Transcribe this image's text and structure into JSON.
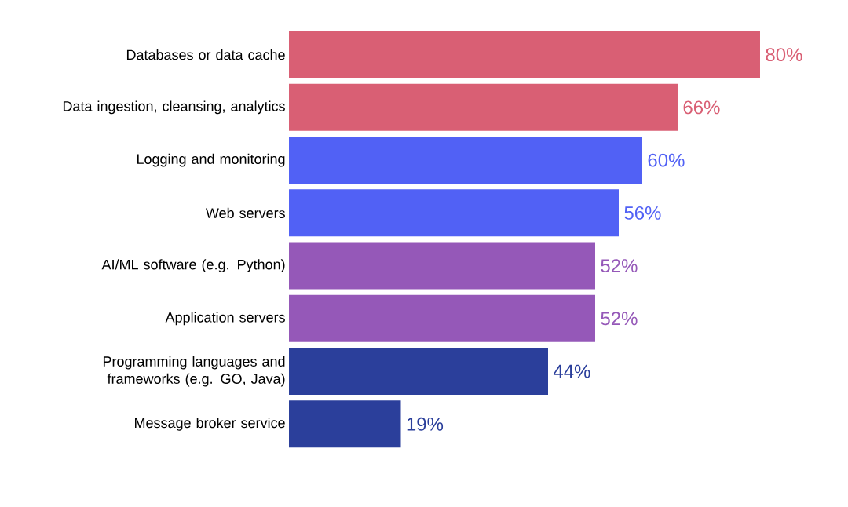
{
  "chart_data": {
    "type": "bar",
    "orientation": "horizontal",
    "categories": [
      "Databases or data cache",
      "Data ingestion, cleansing, analytics",
      "Logging and monitoring",
      "Web servers",
      "AI/ML software (e.g. Python)",
      "Application servers",
      "Programming languages and frameworks (e.g. GO, Java)",
      "Message broker service"
    ],
    "values": [
      80,
      66,
      60,
      56,
      52,
      52,
      44,
      19
    ],
    "colors": [
      "#d95f74",
      "#d95f74",
      "#5161f5",
      "#5161f5",
      "#9558b8",
      "#9558b8",
      "#2b3f9b",
      "#2b3f9b"
    ],
    "value_labels": [
      "80%",
      "66%",
      "60%",
      "56%",
      "52%",
      "52%",
      "44%",
      "19%"
    ]
  }
}
